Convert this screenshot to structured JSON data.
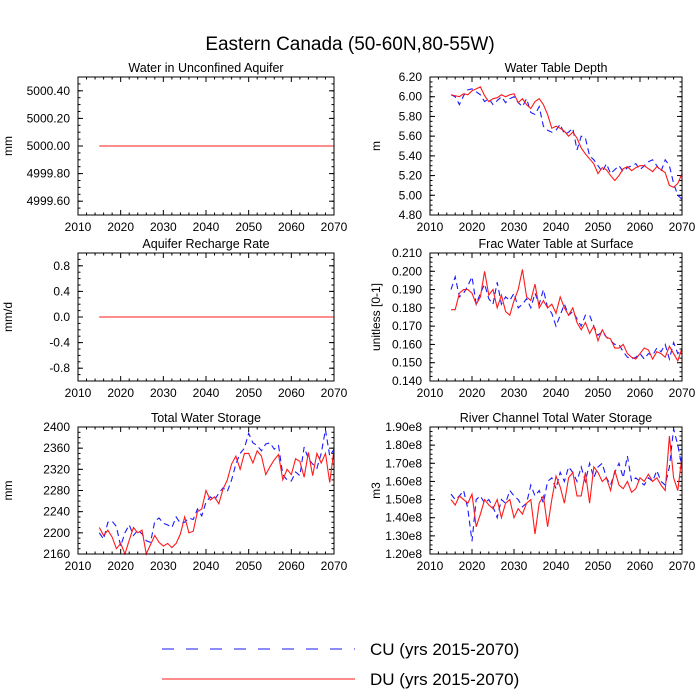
{
  "title": "Eastern Canada (50-60N,80-55W)",
  "legend": [
    {
      "label": "CU (yrs 2015-2070)",
      "color": "#1a1aff",
      "dash": true
    },
    {
      "label": "DU (yrs 2015-2070)",
      "color": "#ff1a1a",
      "dash": false
    }
  ],
  "chart_data": [
    {
      "type": "line",
      "title": "Water in Unconfined Aquifer",
      "ylabel": "mm",
      "xlim": [
        2010,
        2070
      ],
      "ylim": [
        4999.5,
        5000.5
      ],
      "xticks": [
        2010,
        2020,
        2030,
        2040,
        2050,
        2060,
        2070
      ],
      "xtick_labels": [
        "2010",
        "2020",
        "2030",
        "2040",
        "2050",
        "2060",
        "2070"
      ],
      "yticks": [
        4999.6,
        4999.8,
        5000.0,
        5000.2,
        5000.4
      ],
      "ytick_labels": [
        "4999.60",
        "4999.80",
        "5000.00",
        "5000.20",
        "5000.40"
      ],
      "x": [
        2015,
        2070
      ],
      "series": [
        {
          "name": "CU",
          "values": [
            5000.0,
            5000.0
          ]
        },
        {
          "name": "DU",
          "values": [
            5000.0,
            5000.0
          ]
        }
      ]
    },
    {
      "type": "line",
      "title": "Water Table Depth",
      "ylabel": "m",
      "xlim": [
        2010,
        2070
      ],
      "ylim": [
        4.8,
        6.2
      ],
      "xticks": [
        2010,
        2020,
        2030,
        2040,
        2050,
        2060,
        2070
      ],
      "xtick_labels": [
        "2010",
        "2020",
        "2030",
        "2040",
        "2050",
        "2060",
        "2070"
      ],
      "yticks": [
        4.8,
        5.0,
        5.2,
        5.4,
        5.6,
        5.8,
        6.0,
        6.2
      ],
      "ytick_labels": [
        "4.80",
        "5.00",
        "5.20",
        "5.40",
        "5.60",
        "5.80",
        "6.00",
        "6.20"
      ],
      "x": [
        2015,
        2016,
        2017,
        2018,
        2019,
        2020,
        2021,
        2022,
        2023,
        2024,
        2025,
        2026,
        2027,
        2028,
        2029,
        2030,
        2031,
        2032,
        2033,
        2034,
        2035,
        2036,
        2037,
        2038,
        2039,
        2040,
        2041,
        2042,
        2043,
        2044,
        2045,
        2046,
        2047,
        2048,
        2049,
        2050,
        2051,
        2052,
        2053,
        2054,
        2055,
        2056,
        2057,
        2058,
        2059,
        2060,
        2061,
        2062,
        2063,
        2064,
        2065,
        2066,
        2067,
        2068,
        2069,
        2070
      ],
      "series": [
        {
          "name": "CU",
          "values": [
            6.02,
            6.0,
            5.92,
            6.01,
            6.07,
            6.08,
            6.05,
            6.02,
            5.95,
            5.98,
            5.92,
            5.96,
            6.0,
            5.94,
            5.98,
            6.0,
            5.94,
            5.9,
            5.98,
            5.84,
            5.82,
            5.9,
            5.7,
            5.66,
            5.64,
            5.66,
            5.72,
            5.62,
            5.64,
            5.68,
            5.46,
            5.6,
            5.58,
            5.4,
            5.36,
            5.3,
            5.24,
            5.32,
            5.22,
            5.26,
            5.3,
            5.24,
            5.28,
            5.3,
            5.32,
            5.26,
            5.3,
            5.34,
            5.36,
            5.3,
            5.24,
            5.36,
            5.3,
            5.12,
            5.0,
            4.96
          ]
        },
        {
          "name": "DU",
          "values": [
            6.02,
            6.01,
            6.0,
            6.03,
            6.02,
            6.06,
            6.08,
            6.1,
            6.01,
            5.95,
            5.98,
            5.99,
            6.02,
            6.0,
            6.02,
            6.03,
            5.94,
            5.98,
            5.92,
            5.88,
            5.95,
            5.98,
            5.92,
            5.82,
            5.68,
            5.7,
            5.68,
            5.65,
            5.6,
            5.64,
            5.58,
            5.48,
            5.42,
            5.37,
            5.32,
            5.22,
            5.28,
            5.26,
            5.2,
            5.15,
            5.2,
            5.27,
            5.29,
            5.25,
            5.28,
            5.3,
            5.3,
            5.27,
            5.24,
            5.29,
            5.26,
            5.23,
            5.1,
            5.08,
            5.12,
            5.22
          ]
        }
      ]
    },
    {
      "type": "line",
      "title": "Aquifer Recharge Rate",
      "ylabel": "mm/d",
      "xlim": [
        2010,
        2070
      ],
      "ylim": [
        -1.0,
        1.0
      ],
      "xticks": [
        2010,
        2020,
        2030,
        2040,
        2050,
        2060,
        2070
      ],
      "xtick_labels": [
        "2010",
        "2020",
        "2030",
        "2040",
        "2050",
        "2060",
        "2070"
      ],
      "yticks": [
        -0.8,
        -0.4,
        0.0,
        0.4,
        0.8
      ],
      "ytick_labels": [
        "-0.8",
        "-0.4",
        "0.0",
        "0.4",
        "0.8"
      ],
      "x": [
        2015,
        2070
      ],
      "series": [
        {
          "name": "CU",
          "values": [
            0.0,
            0.0
          ]
        },
        {
          "name": "DU",
          "values": [
            0.0,
            0.0
          ]
        }
      ]
    },
    {
      "type": "line",
      "title": "Frac Water Table at Surface",
      "ylabel": "unitless [0-1]",
      "xlim": [
        2010,
        2070
      ],
      "ylim": [
        0.14,
        0.21
      ],
      "xticks": [
        2010,
        2020,
        2030,
        2040,
        2050,
        2060,
        2070
      ],
      "xtick_labels": [
        "2010",
        "2020",
        "2030",
        "2040",
        "2050",
        "2060",
        "2070"
      ],
      "yticks": [
        0.14,
        0.15,
        0.16,
        0.17,
        0.18,
        0.19,
        0.2,
        0.21
      ],
      "ytick_labels": [
        "0.140",
        "0.150",
        "0.160",
        "0.170",
        "0.180",
        "0.190",
        "0.200",
        "0.210"
      ],
      "x": [
        2015,
        2016,
        2017,
        2018,
        2019,
        2020,
        2021,
        2022,
        2023,
        2024,
        2025,
        2026,
        2027,
        2028,
        2029,
        2030,
        2031,
        2032,
        2033,
        2034,
        2035,
        2036,
        2037,
        2038,
        2039,
        2040,
        2041,
        2042,
        2043,
        2044,
        2045,
        2046,
        2047,
        2048,
        2049,
        2050,
        2051,
        2052,
        2053,
        2054,
        2055,
        2056,
        2057,
        2058,
        2059,
        2060,
        2061,
        2062,
        2063,
        2064,
        2065,
        2066,
        2067,
        2068,
        2069,
        2070
      ],
      "series": [
        {
          "name": "CU",
          "values": [
            0.19,
            0.197,
            0.186,
            0.188,
            0.192,
            0.197,
            0.182,
            0.188,
            0.193,
            0.185,
            0.182,
            0.194,
            0.182,
            0.186,
            0.184,
            0.188,
            0.18,
            0.182,
            0.185,
            0.18,
            0.188,
            0.182,
            0.19,
            0.18,
            0.177,
            0.17,
            0.176,
            0.182,
            0.176,
            0.178,
            0.174,
            0.17,
            0.176,
            0.176,
            0.17,
            0.165,
            0.167,
            0.164,
            0.162,
            0.16,
            0.16,
            0.156,
            0.153,
            0.152,
            0.153,
            0.155,
            0.152,
            0.155,
            0.154,
            0.158,
            0.156,
            0.16,
            0.152,
            0.161,
            0.155,
            0.157
          ]
        },
        {
          "name": "DU",
          "values": [
            0.179,
            0.179,
            0.188,
            0.19,
            0.19,
            0.188,
            0.182,
            0.186,
            0.2,
            0.187,
            0.19,
            0.18,
            0.187,
            0.178,
            0.176,
            0.184,
            0.19,
            0.201,
            0.186,
            0.184,
            0.193,
            0.18,
            0.184,
            0.18,
            0.182,
            0.177,
            0.186,
            0.18,
            0.176,
            0.18,
            0.172,
            0.168,
            0.172,
            0.166,
            0.17,
            0.162,
            0.168,
            0.164,
            0.163,
            0.158,
            0.158,
            0.16,
            0.155,
            0.153,
            0.152,
            0.155,
            0.158,
            0.157,
            0.152,
            0.156,
            0.155,
            0.153,
            0.159,
            0.155,
            0.151,
            0.158
          ]
        }
      ]
    },
    {
      "type": "line",
      "title": "Total Water Storage",
      "ylabel": "mm",
      "xlim": [
        2010,
        2070
      ],
      "ylim": [
        2160,
        2400
      ],
      "xticks": [
        2010,
        2020,
        2030,
        2040,
        2050,
        2060,
        2070
      ],
      "xtick_labels": [
        "2010",
        "2020",
        "2030",
        "2040",
        "2050",
        "2060",
        "2070"
      ],
      "yticks": [
        2160,
        2200,
        2240,
        2280,
        2320,
        2360,
        2400
      ],
      "ytick_labels": [
        "2160",
        "2200",
        "2240",
        "2280",
        "2320",
        "2360",
        "2400"
      ],
      "x": [
        2015,
        2016,
        2017,
        2018,
        2019,
        2020,
        2021,
        2022,
        2023,
        2024,
        2025,
        2026,
        2027,
        2028,
        2029,
        2030,
        2031,
        2032,
        2033,
        2034,
        2035,
        2036,
        2037,
        2038,
        2039,
        2040,
        2041,
        2042,
        2043,
        2044,
        2045,
        2046,
        2047,
        2048,
        2049,
        2050,
        2051,
        2052,
        2053,
        2054,
        2055,
        2056,
        2057,
        2058,
        2059,
        2060,
        2061,
        2062,
        2063,
        2064,
        2065,
        2066,
        2067,
        2068,
        2069,
        2070
      ],
      "series": [
        {
          "name": "CU",
          "values": [
            2200,
            2188,
            2220,
            2222,
            2212,
            2175,
            2200,
            2215,
            2195,
            2205,
            2198,
            2185,
            2182,
            2222,
            2228,
            2218,
            2215,
            2210,
            2230,
            2218,
            2220,
            2228,
            2225,
            2245,
            2232,
            2258,
            2268,
            2262,
            2275,
            2285,
            2278,
            2300,
            2330,
            2350,
            2360,
            2388,
            2370,
            2365,
            2355,
            2368,
            2370,
            2358,
            2365,
            2310,
            2300,
            2298,
            2315,
            2308,
            2362,
            2340,
            2330,
            2322,
            2350,
            2395,
            2345,
            2358
          ]
        },
        {
          "name": "DU",
          "values": [
            2210,
            2195,
            2205,
            2192,
            2170,
            2180,
            2160,
            2186,
            2210,
            2200,
            2205,
            2160,
            2178,
            2195,
            2182,
            2175,
            2180,
            2172,
            2180,
            2198,
            2230,
            2200,
            2203,
            2240,
            2245,
            2280,
            2262,
            2268,
            2255,
            2283,
            2300,
            2330,
            2345,
            2320,
            2350,
            2350,
            2332,
            2355,
            2345,
            2310,
            2325,
            2338,
            2348,
            2300,
            2320,
            2310,
            2340,
            2335,
            2305,
            2352,
            2308,
            2350,
            2332,
            2350,
            2295,
            2358
          ]
        }
      ]
    },
    {
      "type": "line",
      "title": "River Channel Total Water Storage",
      "ylabel": "m3",
      "xlim": [
        2010,
        2070
      ],
      "ylim": [
        120000000.0,
        190000000.0
      ],
      "xticks": [
        2010,
        2020,
        2030,
        2040,
        2050,
        2060,
        2070
      ],
      "xtick_labels": [
        "2010",
        "2020",
        "2030",
        "2040",
        "2050",
        "2060",
        "2070"
      ],
      "yticks": [
        120000000.0,
        130000000.0,
        140000000.0,
        150000000.0,
        160000000.0,
        170000000.0,
        180000000.0,
        190000000.0
      ],
      "ytick_labels": [
        "1.20e8",
        "1.30e8",
        "1.40e8",
        "1.50e8",
        "1.60e8",
        "1.70e8",
        "1.80e8",
        "1.90e8"
      ],
      "x": [
        2015,
        2016,
        2017,
        2018,
        2019,
        2020,
        2021,
        2022,
        2023,
        2024,
        2025,
        2026,
        2027,
        2028,
        2029,
        2030,
        2031,
        2032,
        2033,
        2034,
        2035,
        2036,
        2037,
        2038,
        2039,
        2040,
        2041,
        2042,
        2043,
        2044,
        2045,
        2046,
        2047,
        2048,
        2049,
        2050,
        2051,
        2052,
        2053,
        2054,
        2055,
        2056,
        2057,
        2058,
        2059,
        2060,
        2061,
        2062,
        2063,
        2064,
        2065,
        2066,
        2067,
        2068,
        2069,
        2070
      ],
      "series": [
        {
          "name": "CU",
          "values": [
            153000000.0,
            150000000.0,
            152000000.0,
            155000000.0,
            145000000.0,
            127000000.0,
            150000000.0,
            152000000.0,
            148000000.0,
            150000000.0,
            146000000.0,
            140000000.0,
            150000000.0,
            148000000.0,
            155000000.0,
            152000000.0,
            150000000.0,
            146000000.0,
            148000000.0,
            158000000.0,
            152000000.0,
            155000000.0,
            148000000.0,
            160000000.0,
            162000000.0,
            156000000.0,
            165000000.0,
            160000000.0,
            168000000.0,
            165000000.0,
            160000000.0,
            168000000.0,
            160000000.0,
            170000000.0,
            162000000.0,
            168000000.0,
            170000000.0,
            162000000.0,
            158000000.0,
            165000000.0,
            170000000.0,
            162000000.0,
            174000000.0,
            160000000.0,
            162000000.0,
            160000000.0,
            158000000.0,
            162000000.0,
            160000000.0,
            166000000.0,
            160000000.0,
            158000000.0,
            168000000.0,
            189000000.0,
            180000000.0,
            168000000.0
          ]
        },
        {
          "name": "DU",
          "values": [
            150000000.0,
            147000000.0,
            152000000.0,
            150000000.0,
            148000000.0,
            153000000.0,
            135000000.0,
            142000000.0,
            150000000.0,
            147000000.0,
            145000000.0,
            150000000.0,
            140000000.0,
            148000000.0,
            150000000.0,
            140000000.0,
            145000000.0,
            142000000.0,
            148000000.0,
            150000000.0,
            131000000.0,
            148000000.0,
            152000000.0,
            135000000.0,
            150000000.0,
            163000000.0,
            157000000.0,
            148000000.0,
            162000000.0,
            165000000.0,
            152000000.0,
            152000000.0,
            165000000.0,
            148000000.0,
            168000000.0,
            165000000.0,
            160000000.0,
            162000000.0,
            155000000.0,
            166000000.0,
            158000000.0,
            156000000.0,
            160000000.0,
            154000000.0,
            156000000.0,
            162000000.0,
            160000000.0,
            164000000.0,
            160000000.0,
            162000000.0,
            158000000.0,
            155000000.0,
            185000000.0,
            162000000.0,
            155000000.0,
            174000000.0
          ]
        }
      ]
    }
  ]
}
